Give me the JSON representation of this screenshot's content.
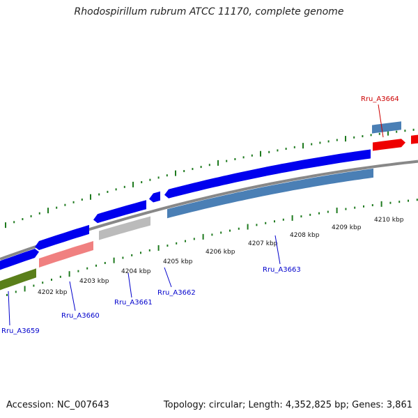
{
  "title": "Rhodospirillum rubrum ATCC 11170, complete genome",
  "footer": {
    "accession": "Accession: NC_007643",
    "topology": "Topology: circular; Length: 4,352,825 bp; Genes: 3,861"
  },
  "scale_ticks": [
    "4202 kbp",
    "4203 kbp",
    "4204 kbp",
    "4205 kbp",
    "4206 kbp",
    "4207 kbp",
    "4208 kbp",
    "4209 kbp",
    "4210 kbp"
  ],
  "gene_labels": [
    {
      "name": "Rru_A3659",
      "color": "#0000cc"
    },
    {
      "name": "Rru_A3660",
      "color": "#0000cc"
    },
    {
      "name": "Rru_A3661",
      "color": "#0000cc"
    },
    {
      "name": "Rru_A3662",
      "color": "#0000cc"
    },
    {
      "name": "Rru_A3663",
      "color": "#0000cc"
    },
    {
      "name": "Rru_A3664",
      "color": "#cc0000"
    }
  ],
  "colors": {
    "cds_forward": "#0000ee",
    "cds_other": "#4a7fb5",
    "rna": "#ee0000",
    "pseudogene": "#bbbbbb",
    "rna_light": "#f08080",
    "green_feature": "#5a7f1a",
    "backbone": "#888888",
    "tick": "#1e7a1e"
  }
}
